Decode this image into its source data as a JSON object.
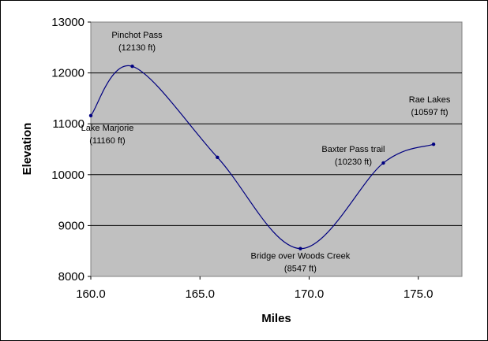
{
  "chart_data": {
    "type": "line",
    "title": "",
    "xlabel": "Miles",
    "ylabel": "Elevation",
    "xlim": [
      160.0,
      177.0
    ],
    "ylim": [
      8000,
      13000
    ],
    "x_ticks": [
      160.0,
      165.0,
      170.0,
      175.0
    ],
    "x_tick_labels": [
      "160.0",
      "165.0",
      "170.0",
      "175.0"
    ],
    "y_ticks": [
      8000,
      9000,
      10000,
      11000,
      12000,
      13000
    ],
    "y_tick_labels": [
      "8000",
      "9000",
      "10000",
      "11000",
      "12000",
      "13000"
    ],
    "grid": "horizontal",
    "legend": "none",
    "plot_background": "#c0c0c0",
    "line_color": "#000080",
    "series": [
      {
        "x": [
          160.0,
          161.9,
          165.8,
          169.6,
          173.4,
          175.7
        ],
        "y": [
          11160,
          12130,
          10340,
          8547,
          10230,
          10597
        ]
      }
    ],
    "annotations": [
      {
        "line1": "Lake Marjorie",
        "line2": "(11160 ft)",
        "x": 160.0,
        "y": 11160
      },
      {
        "line1": "Pinchot Pass",
        "line2": "(12130 ft)",
        "x": 161.9,
        "y": 12130
      },
      {
        "line1": "Bridge over Woods Creek",
        "line2": "(8547 ft)",
        "x": 169.6,
        "y": 8547
      },
      {
        "line1": "Baxter Pass trail",
        "line2": "(10230 ft)",
        "x": 173.4,
        "y": 10230
      },
      {
        "line1": "Rae Lakes",
        "line2": "(10597 ft)",
        "x": 175.7,
        "y": 10597
      }
    ]
  }
}
